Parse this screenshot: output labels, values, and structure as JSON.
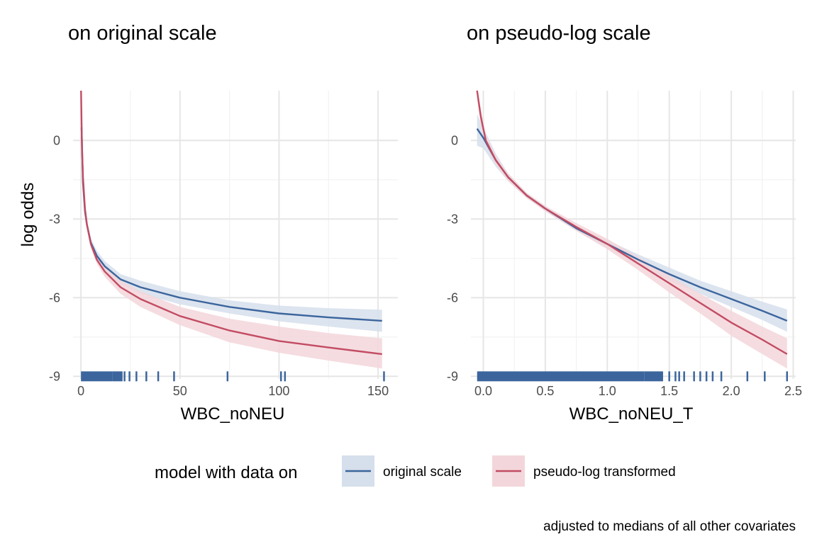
{
  "colors": {
    "original": "#3c659d",
    "pseudo": "#c24c63",
    "original_fill": "#d6dfec",
    "pseudo_fill": "#f3d6db",
    "grid_major": "#e6e6e6",
    "grid_minor": "#f2f2f2"
  },
  "legend": {
    "title": "model with data on",
    "items": [
      {
        "key": "original",
        "label": "original scale"
      },
      {
        "key": "pseudo",
        "label": "pseudo-log transformed"
      }
    ]
  },
  "caption": "adjusted to medians of all other covariates",
  "y_axis_label": "log odds",
  "chart_data": [
    {
      "type": "line",
      "title": "on original scale",
      "xlabel": "WBC_noNEU",
      "ylabel": "log odds",
      "xlim": [
        -4,
        160
      ],
      "ylim": [
        -9.1,
        1.9
      ],
      "xticks": [
        0,
        50,
        100,
        150
      ],
      "xtick_labels": [
        "0",
        "50",
        "100",
        "150"
      ],
      "yticks": [
        0,
        -3,
        -6,
        -9
      ],
      "ytick_labels": [
        "0",
        "-3",
        "-6",
        "-9"
      ],
      "grid": true,
      "series": [
        {
          "name": "original scale",
          "key": "original",
          "x": [
            0.3,
            1,
            2,
            3,
            5,
            8,
            12,
            20,
            30,
            50,
            75,
            100,
            125,
            152
          ],
          "y": [
            0.5,
            -1.6,
            -2.7,
            -3.2,
            -3.9,
            -4.4,
            -4.8,
            -5.3,
            -5.6,
            -6.0,
            -6.35,
            -6.6,
            -6.75,
            -6.88
          ],
          "lower": [
            0.0,
            -1.9,
            -2.9,
            -3.35,
            -4.05,
            -4.6,
            -5.0,
            -5.5,
            -5.85,
            -6.25,
            -6.6,
            -6.9,
            -7.1,
            -7.3
          ],
          "upper": [
            1.0,
            -1.3,
            -2.5,
            -3.05,
            -3.75,
            -4.2,
            -4.6,
            -5.1,
            -5.35,
            -5.75,
            -6.1,
            -6.3,
            -6.4,
            -6.46
          ]
        },
        {
          "name": "pseudo-log transformed",
          "key": "pseudo",
          "x": [
            0.05,
            0.5,
            1,
            2,
            3,
            5,
            8,
            12,
            20,
            30,
            50,
            75,
            100,
            125,
            152
          ],
          "y": [
            1.9,
            -0.3,
            -1.4,
            -2.6,
            -3.2,
            -3.95,
            -4.55,
            -5.0,
            -5.6,
            -6.05,
            -6.7,
            -7.25,
            -7.65,
            -7.9,
            -8.15
          ],
          "lower": [
            1.6,
            -0.5,
            -1.55,
            -2.75,
            -3.35,
            -4.1,
            -4.7,
            -5.2,
            -5.85,
            -6.35,
            -7.05,
            -7.7,
            -8.1,
            -8.4,
            -8.7
          ],
          "upper": [
            2.0,
            -0.1,
            -1.25,
            -2.45,
            -3.05,
            -3.8,
            -4.4,
            -4.8,
            -5.35,
            -5.75,
            -6.35,
            -6.8,
            -7.1,
            -7.35,
            -7.55
          ]
        }
      ],
      "rug": {
        "y": -9,
        "dense_ranges": [
          [
            0,
            16
          ],
          [
            16,
            21
          ]
        ],
        "x": [
          22,
          24.5,
          28,
          33,
          39,
          47,
          74,
          101,
          103,
          153
        ]
      }
    },
    {
      "type": "line",
      "title": "on pseudo-log scale",
      "xlabel": "WBC_noNEU_T",
      "ylabel": "",
      "xlim": [
        -0.1,
        2.52
      ],
      "ylim": [
        -9.1,
        1.9
      ],
      "xticks": [
        0,
        0.5,
        1,
        1.5,
        2,
        2.5
      ],
      "xtick_labels": [
        "0.0",
        "0.5",
        "1.0",
        "1.5",
        "2.0",
        "2.5"
      ],
      "yticks": [
        0,
        -3,
        -6,
        -9
      ],
      "ytick_labels": [
        "0",
        "-3",
        "-6",
        "-9"
      ],
      "grid": true,
      "series": [
        {
          "name": "original scale",
          "key": "original",
          "x": [
            -0.05,
            0,
            0.1,
            0.2,
            0.35,
            0.5,
            0.75,
            1.0,
            1.25,
            1.5,
            1.75,
            2.0,
            2.25,
            2.45
          ],
          "y": [
            0.45,
            0.1,
            -0.75,
            -1.4,
            -2.1,
            -2.6,
            -3.35,
            -3.95,
            -4.55,
            -5.1,
            -5.6,
            -6.05,
            -6.5,
            -6.88
          ],
          "lower": [
            -0.2,
            -0.3,
            -1.0,
            -1.55,
            -2.2,
            -2.7,
            -3.45,
            -4.1,
            -4.75,
            -5.35,
            -5.85,
            -6.35,
            -6.85,
            -7.3
          ],
          "upper": [
            1.0,
            0.5,
            -0.5,
            -1.25,
            -2.0,
            -2.5,
            -3.25,
            -3.8,
            -4.35,
            -4.85,
            -5.35,
            -5.75,
            -6.15,
            -6.45
          ]
        },
        {
          "name": "pseudo-log transformed",
          "key": "pseudo",
          "x": [
            -0.05,
            -0.02,
            0.02,
            0.1,
            0.2,
            0.35,
            0.5,
            0.75,
            1.0,
            1.25,
            1.5,
            1.75,
            2.0,
            2.25,
            2.45
          ],
          "y": [
            1.9,
            0.9,
            0.0,
            -0.75,
            -1.4,
            -2.1,
            -2.6,
            -3.3,
            -3.95,
            -4.7,
            -5.45,
            -6.2,
            -6.95,
            -7.6,
            -8.15
          ],
          "lower": [
            1.6,
            0.6,
            -0.2,
            -0.9,
            -1.55,
            -2.2,
            -2.7,
            -3.45,
            -4.15,
            -4.95,
            -5.8,
            -6.6,
            -7.45,
            -8.15,
            -8.7
          ],
          "upper": [
            2.0,
            1.2,
            0.2,
            -0.6,
            -1.25,
            -2.0,
            -2.5,
            -3.15,
            -3.75,
            -4.45,
            -5.15,
            -5.85,
            -6.5,
            -7.1,
            -7.55
          ]
        }
      ],
      "rug": {
        "y": -9,
        "dense_ranges": [
          [
            -0.05,
            1.3
          ],
          [
            1.3,
            1.45
          ]
        ],
        "x": [
          1.5,
          1.55,
          1.58,
          1.62,
          1.7,
          1.75,
          1.8,
          1.85,
          1.92,
          2.13,
          2.27,
          2.45
        ]
      }
    }
  ]
}
